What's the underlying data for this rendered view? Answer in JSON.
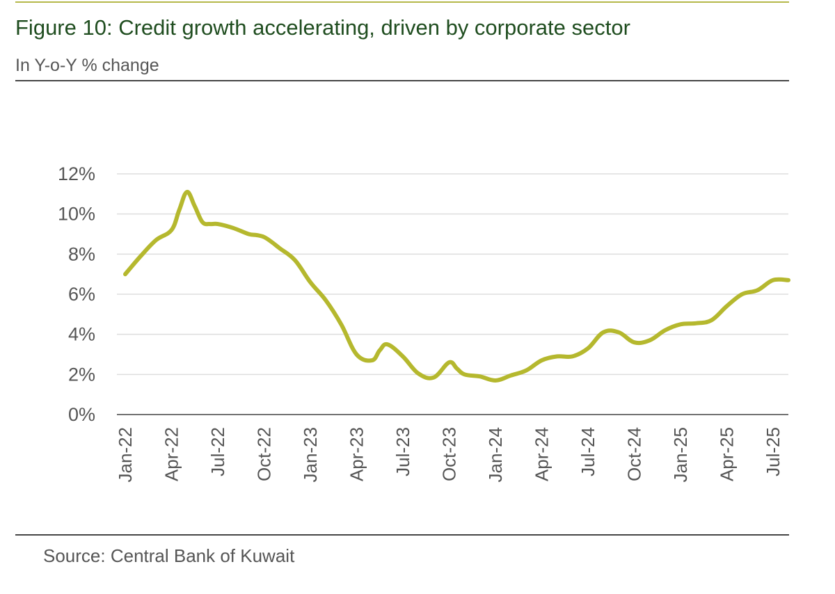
{
  "header": {
    "title": "Figure 10: Credit growth accelerating, driven by corporate sector",
    "subtitle": "In Y-o-Y % change"
  },
  "footer": {
    "source": "Source: Central Bank of Kuwait"
  },
  "colors": {
    "line": "#b5b82e",
    "title": "#1f4d1f",
    "top_rule": "#b5b84a",
    "grid": "#dddddd",
    "axis": "#444444",
    "tick_text": "#555555"
  },
  "chart_data": {
    "type": "line",
    "title": "Figure 10: Credit growth accelerating, driven by corporate sector",
    "subtitle": "In Y-o-Y % change",
    "xlabel": "",
    "ylabel": "",
    "ylim": [
      0,
      12
    ],
    "y_ticks": [
      0,
      2,
      4,
      6,
      8,
      10,
      12
    ],
    "y_tick_labels": [
      "0%",
      "2%",
      "4%",
      "6%",
      "8%",
      "10%",
      "12%"
    ],
    "grid": true,
    "legend": "none",
    "x_tick_labels": [
      "Jan-22",
      "Apr-22",
      "Jul-22",
      "Oct-22",
      "Jan-23",
      "Apr-23",
      "Jul-23",
      "Oct-23",
      "Jan-24",
      "Apr-24",
      "Jul-24",
      "Oct-24",
      "Jan-25",
      "Apr-25",
      "Jul-25"
    ],
    "x_tick_month_index": [
      0,
      3,
      6,
      9,
      12,
      15,
      18,
      21,
      24,
      27,
      30,
      33,
      36,
      39,
      42
    ],
    "x_range_months": [
      0,
      43
    ],
    "series": [
      {
        "name": "Credit growth",
        "x_months": [
          0,
          1,
          2,
          3,
          3.5,
          4,
          4.5,
          5,
          5.5,
          6,
          7,
          8,
          8.5,
          9,
          9.5,
          10,
          11,
          12,
          13,
          14,
          15,
          16,
          16.5,
          17,
          18,
          19,
          20,
          21,
          21.5,
          22,
          23,
          24,
          25,
          26,
          27,
          28,
          29,
          30,
          31,
          32,
          33,
          34,
          35,
          36,
          37,
          38,
          39,
          40,
          41,
          42,
          43
        ],
        "values": [
          7.0,
          7.9,
          8.7,
          9.2,
          10.2,
          11.1,
          10.4,
          9.6,
          9.5,
          9.5,
          9.3,
          9.0,
          8.95,
          8.85,
          8.6,
          8.3,
          7.7,
          6.6,
          5.7,
          4.5,
          3.0,
          2.7,
          3.2,
          3.5,
          2.9,
          2.05,
          1.85,
          2.6,
          2.3,
          2.0,
          1.9,
          1.7,
          1.95,
          2.2,
          2.7,
          2.9,
          2.9,
          3.3,
          4.1,
          4.1,
          3.6,
          3.7,
          4.2,
          4.5,
          4.55,
          4.7,
          5.4,
          6.0,
          6.2,
          6.7,
          6.7
        ]
      }
    ]
  }
}
